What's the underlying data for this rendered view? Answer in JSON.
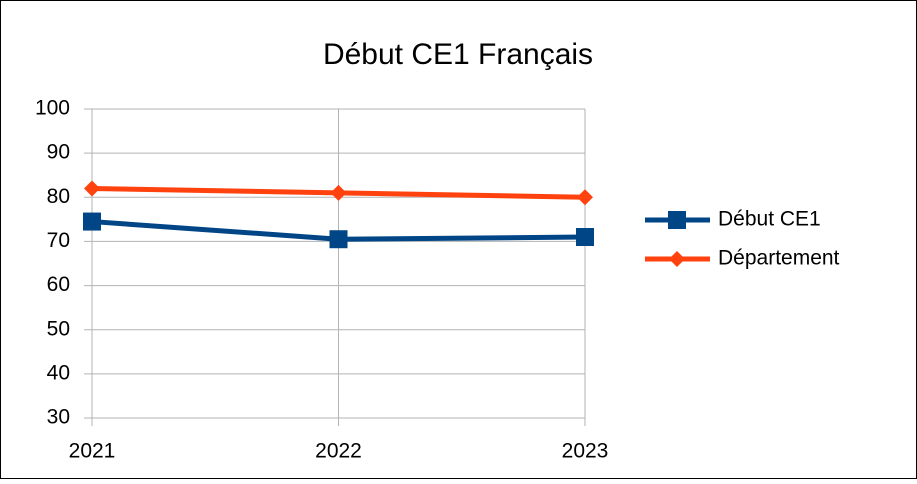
{
  "chart_data": {
    "type": "line",
    "title": "Début CE1 Français",
    "categories": [
      "2021",
      "2022",
      "2023"
    ],
    "series": [
      {
        "name": "Début CE1",
        "color": "#004586",
        "marker": "square",
        "values": [
          74.5,
          70.5,
          71
        ]
      },
      {
        "name": "Département",
        "color": "#ff420e",
        "marker": "diamond",
        "values": [
          82,
          81,
          80
        ]
      }
    ],
    "ylim": [
      30,
      100
    ],
    "yticks": [
      30,
      40,
      50,
      60,
      70,
      80,
      90,
      100
    ],
    "grid": true,
    "legend": "right"
  }
}
